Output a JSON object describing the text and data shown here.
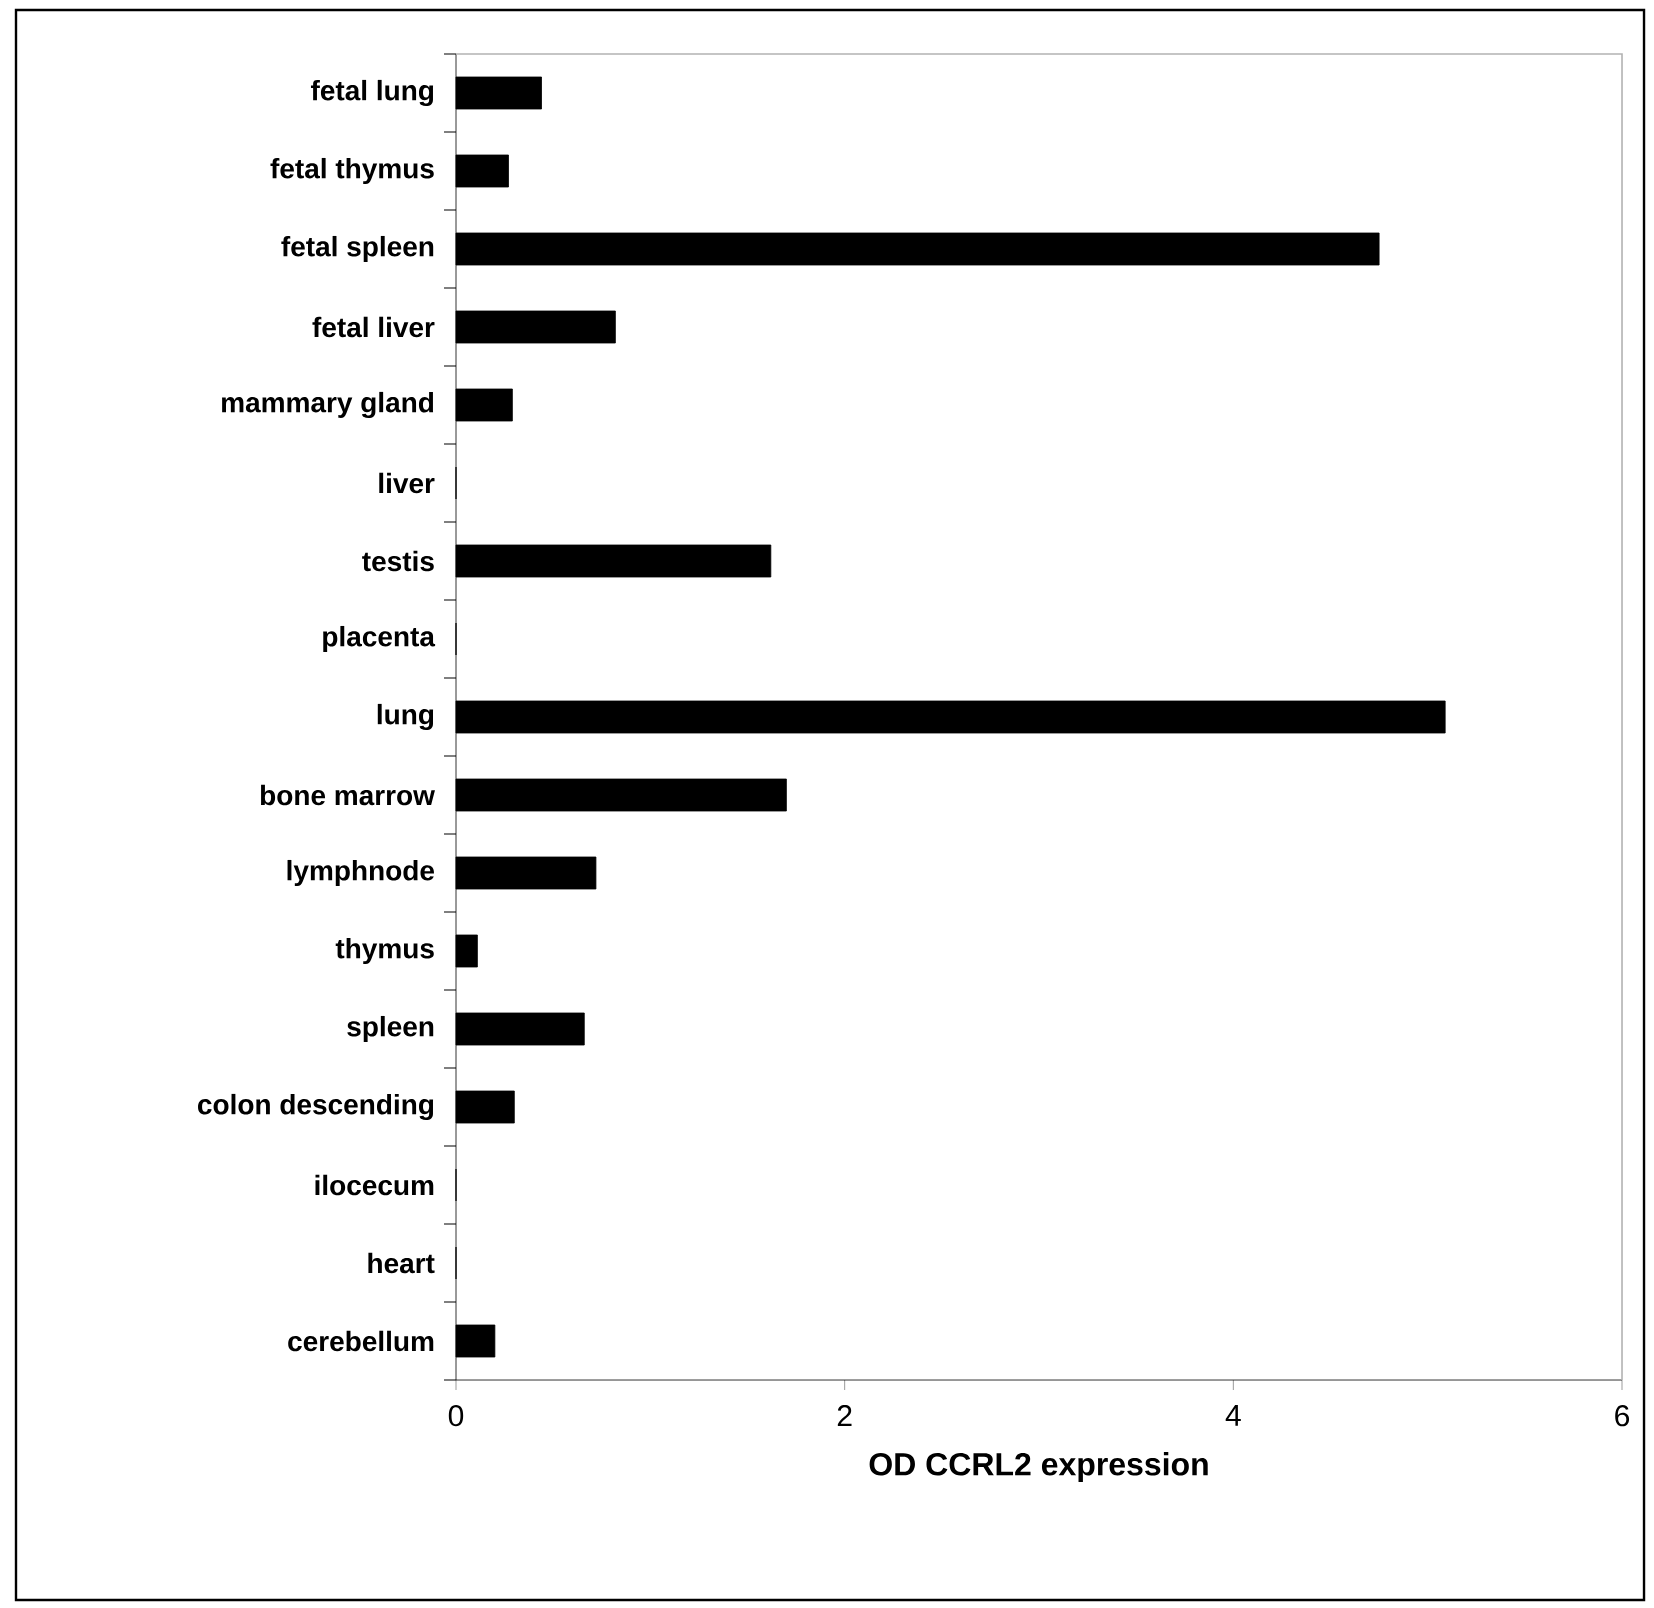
{
  "chart_data": {
    "type": "bar",
    "orientation": "horizontal",
    "xlabel": "OD CCRL2 expression",
    "categories": [
      "fetal lung",
      "fetal thymus",
      "fetal spleen",
      "fetal liver",
      "mammary gland",
      "liver",
      "testis",
      "placenta",
      "lung",
      "bone marrow",
      "lymphnode",
      "thymus",
      "spleen",
      "colon descending",
      "ilocecum",
      "heart",
      "cerebellum"
    ],
    "values": [
      0.44,
      0.27,
      4.75,
      0.82,
      0.29,
      0,
      1.62,
      0,
      5.09,
      1.7,
      0.72,
      0.11,
      0.66,
      0.3,
      0,
      0,
      0.2
    ],
    "color": "#000000",
    "xlim": [
      0,
      6
    ],
    "xticks": [
      0,
      2,
      4,
      6
    ]
  }
}
